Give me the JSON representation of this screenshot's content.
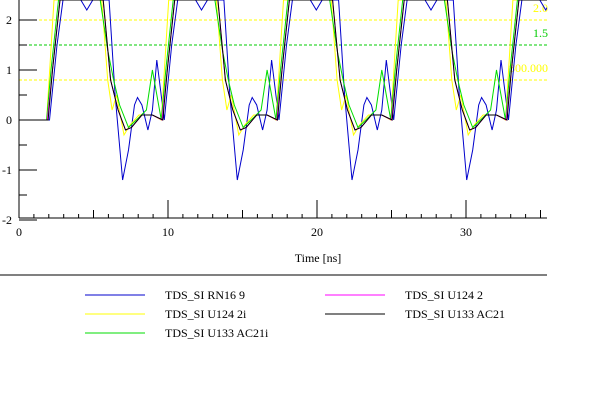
{
  "chart_data": {
    "type": "line",
    "xlabel": "Time [ns]",
    "ylabel": "",
    "xlim": [
      0,
      35.5
    ],
    "ylim": [
      -2,
      2.4
    ],
    "x_ticks": [
      "0",
      "10",
      "20",
      "30"
    ],
    "x_tick_values": [
      0,
      10,
      20,
      30
    ],
    "y_ticks": [
      "-2",
      "-1",
      "0",
      "1",
      "2"
    ],
    "y_tick_values": [
      -2,
      -1,
      0,
      1,
      2
    ],
    "thresholds": [
      {
        "label": "2.0",
        "value": 2.0,
        "color": "#ffff00"
      },
      {
        "label": "1.5",
        "value": 1.5,
        "color": "#00cc00"
      },
      {
        "label": "800.000",
        "value": 0.8,
        "color": "#ffff00"
      }
    ],
    "waveform_start_ns": 1.75,
    "period_ns": 7.7,
    "periods": 5,
    "series": [
      {
        "name": "TDS_SI RN16 9",
        "color": "#0000cc",
        "period_points": [
          [
            0,
            0
          ],
          [
            0.3,
            0
          ],
          [
            0.8,
            1.5
          ],
          [
            1.2,
            2.4
          ],
          [
            2.4,
            2.4
          ],
          [
            2.8,
            2.2
          ],
          [
            3.2,
            2.4
          ],
          [
            4.3,
            2.4
          ],
          [
            4.7,
            0.5
          ],
          [
            5.2,
            -1.2
          ],
          [
            5.6,
            -0.6
          ],
          [
            6.0,
            0.3
          ],
          [
            6.2,
            0.45
          ],
          [
            6.5,
            0.3
          ],
          [
            6.9,
            -0.2
          ],
          [
            7.2,
            0.2
          ],
          [
            7.5,
            1.2
          ],
          [
            7.7,
            0
          ]
        ]
      },
      {
        "name": "TDS_SI U124 2i",
        "color": "#ffff00",
        "period_points": [
          [
            0,
            0
          ],
          [
            0.1,
            0
          ],
          [
            0.6,
            2.4
          ],
          [
            3.8,
            2.4
          ],
          [
            4.2,
            0.8
          ],
          [
            4.5,
            0.2
          ],
          [
            4.8,
            0.5
          ],
          [
            5.3,
            -0.3
          ],
          [
            5.7,
            -0.1
          ],
          [
            6.3,
            0.1
          ],
          [
            7.2,
            0.1
          ],
          [
            7.7,
            0
          ]
        ]
      },
      {
        "name": "TDS_SI U133 AC21i",
        "color": "#00dd00",
        "period_points": [
          [
            0,
            0
          ],
          [
            0.1,
            0
          ],
          [
            0.4,
            1.0
          ],
          [
            0.9,
            2.4
          ],
          [
            3.7,
            2.4
          ],
          [
            4.2,
            1.4
          ],
          [
            4.6,
            0.8
          ],
          [
            5.0,
            0.3
          ],
          [
            5.6,
            -0.15
          ],
          [
            6.3,
            0.05
          ],
          [
            6.8,
            0.2
          ],
          [
            7.2,
            1.0
          ],
          [
            7.7,
            0
          ]
        ]
      },
      {
        "name": "TDS_SI U124 2",
        "color": "#ff00ff",
        "period_points": [
          [
            0,
            0
          ],
          [
            0.15,
            0
          ],
          [
            0.5,
            1.0
          ],
          [
            1.0,
            2.4
          ],
          [
            3.9,
            2.4
          ],
          [
            4.4,
            0.8
          ],
          [
            4.9,
            0.2
          ],
          [
            5.4,
            -0.2
          ],
          [
            5.8,
            -0.15
          ],
          [
            6.5,
            0.1
          ],
          [
            7.2,
            0.1
          ],
          [
            7.7,
            0
          ]
        ]
      },
      {
        "name": "TDS_SI U133 AC21",
        "color": "#000000",
        "period_points": [
          [
            0,
            0
          ],
          [
            0.2,
            0
          ],
          [
            0.5,
            1.0
          ],
          [
            1.0,
            2.4
          ],
          [
            3.9,
            2.4
          ],
          [
            4.4,
            0.8
          ],
          [
            4.9,
            0.2
          ],
          [
            5.4,
            -0.2
          ],
          [
            5.8,
            -0.15
          ],
          [
            6.5,
            0.1
          ],
          [
            7.2,
            0.1
          ],
          [
            7.7,
            0
          ]
        ]
      }
    ],
    "legend_placement": "bottom"
  }
}
